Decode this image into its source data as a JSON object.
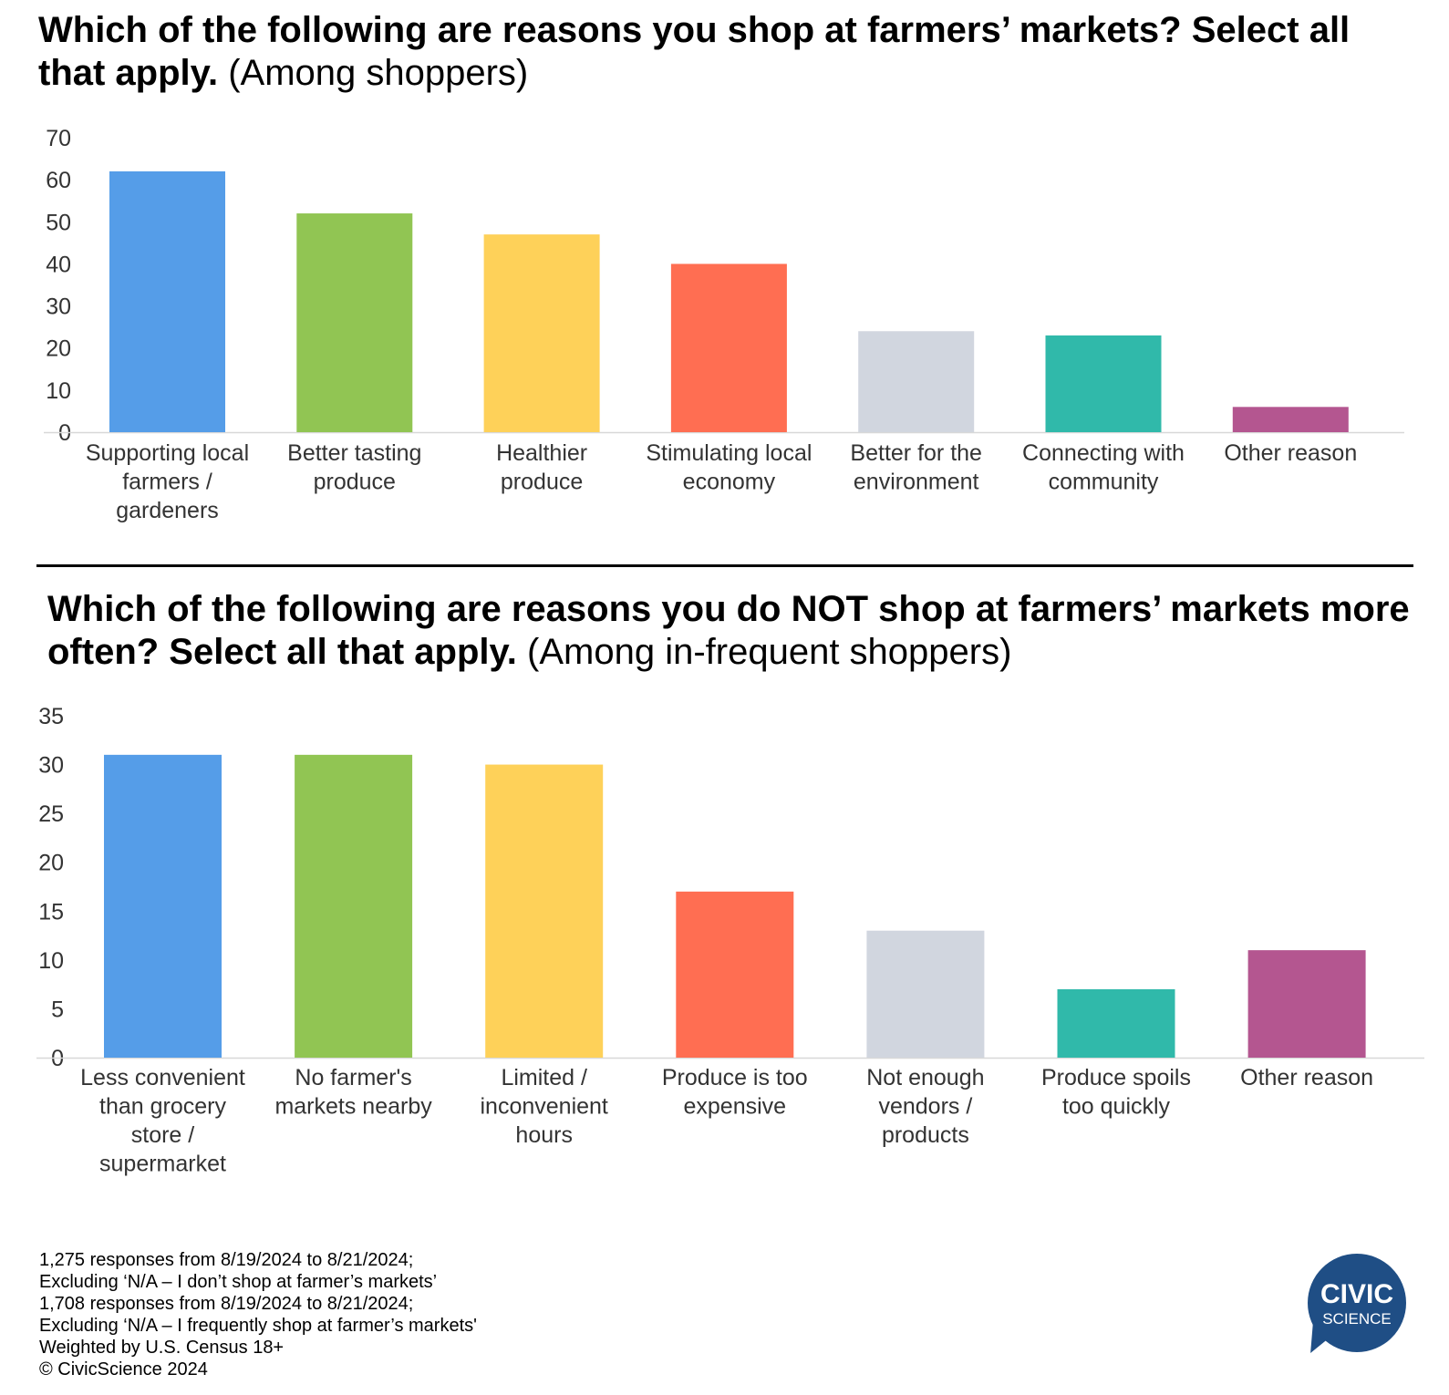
{
  "charts": [
    {
      "title_bold": "Which of the following are reasons you shop at farmers’ markets? Select all that apply.",
      "title_sub": "(Among shoppers)"
    },
    {
      "title_bold": "Which of the following are reasons you do NOT shop at farmers’ markets more often? Select all that apply.",
      "title_sub": "(Among in-frequent shoppers)"
    }
  ],
  "chart_data": [
    {
      "type": "bar",
      "title": "Which of the following are reasons you shop at farmers’ markets? Select all that apply. (Among shoppers)",
      "categories": [
        [
          "Supporting local",
          "farmers /",
          "gardeners"
        ],
        [
          "Better tasting",
          "produce"
        ],
        [
          "Healthier",
          "produce"
        ],
        [
          "Stimulating local",
          "economy"
        ],
        [
          "Better for the",
          "environment"
        ],
        [
          "Connecting with",
          "community"
        ],
        [
          "Other reason"
        ]
      ],
      "values": [
        62,
        52,
        47,
        40,
        24,
        23,
        6
      ],
      "colors": [
        "#559de8",
        "#91c553",
        "#fed159",
        "#ff6e52",
        "#d1d6df",
        "#30b9aa",
        "#b45690"
      ],
      "ylim": [
        0,
        70
      ],
      "yticks": [
        0,
        10,
        20,
        30,
        40,
        50,
        60,
        70
      ],
      "grid": false,
      "xlabel": "",
      "ylabel": ""
    },
    {
      "type": "bar",
      "title": "Which of the following are reasons you do NOT shop at farmers’ markets more often? Select all that apply. (Among in-frequent shoppers)",
      "categories": [
        [
          "Less convenient",
          "than grocery",
          "store /",
          "supermarket"
        ],
        [
          "No farmer's",
          "markets nearby"
        ],
        [
          "Limited /",
          "inconvenient",
          "hours"
        ],
        [
          "Produce is too",
          "expensive"
        ],
        [
          "Not enough",
          "vendors /",
          "products"
        ],
        [
          "Produce spoils",
          "too quickly"
        ],
        [
          "Other reason"
        ]
      ],
      "values": [
        31,
        31,
        30,
        17,
        13,
        7,
        11
      ],
      "colors": [
        "#559de8",
        "#91c553",
        "#fed159",
        "#ff6e52",
        "#d1d6df",
        "#30b9aa",
        "#b45690"
      ],
      "ylim": [
        0,
        35
      ],
      "yticks": [
        0,
        5,
        10,
        15,
        20,
        25,
        30,
        35
      ],
      "grid": false,
      "xlabel": "",
      "ylabel": ""
    }
  ],
  "footnote": [
    "1,275 responses from 8/19/2024 to 8/21/2024;",
    "Excluding ‘N/A – I don’t shop at farmer’s markets’",
    "1,708 responses from 8/19/2024 to 8/21/2024;",
    "Excluding ‘N/A – I frequently shop at farmer’s markets'",
    "Weighted by U.S. Census 18+",
    "© CivicScience 2024"
  ],
  "logo": {
    "line1": "CIVIC",
    "line2": "SCIENCE",
    "color": "#1f4e85"
  }
}
